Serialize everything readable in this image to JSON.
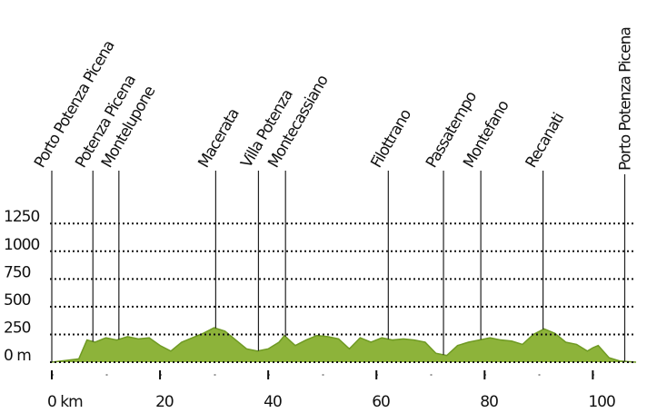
{
  "chart_data": {
    "type": "area",
    "color": "#8db33a",
    "line_color": "#6f9a23",
    "x": [
      0,
      5,
      6.5,
      8,
      10,
      12,
      14,
      16,
      18,
      20,
      22,
      24,
      26,
      28,
      30,
      32,
      34,
      36,
      38,
      40,
      42,
      43,
      45,
      47,
      49,
      51,
      53,
      55,
      57,
      59,
      61,
      63,
      65,
      67,
      69,
      71,
      73,
      75,
      77,
      79,
      81,
      83,
      85,
      87,
      89,
      91,
      93,
      95,
      97,
      99,
      100,
      101,
      103,
      105,
      108
    ],
    "values": [
      0,
      30,
      200,
      180,
      220,
      200,
      230,
      210,
      220,
      150,
      100,
      180,
      220,
      260,
      310,
      280,
      200,
      120,
      100,
      120,
      180,
      240,
      150,
      200,
      240,
      230,
      210,
      120,
      220,
      180,
      220,
      200,
      210,
      200,
      180,
      80,
      60,
      150,
      180,
      200,
      220,
      200,
      190,
      160,
      250,
      300,
      260,
      180,
      160,
      100,
      130,
      150,
      40,
      10,
      0
    ],
    "xlim": [
      0,
      108
    ],
    "ylim": [
      0,
      1350
    ],
    "xticks": [
      {
        "value": 0,
        "label": "0 km"
      },
      20,
      40,
      60,
      80,
      100
    ],
    "yticks": [
      {
        "value": 0,
        "label": "0 m"
      },
      250,
      500,
      750,
      1000,
      1250
    ],
    "grid": true,
    "waypoints": [
      {
        "name": "Porto Potenza Picena",
        "km": 0
      },
      {
        "name": "Potenza Picena",
        "km": 7.6
      },
      {
        "name": "Montelupone",
        "km": 12.4
      },
      {
        "name": "Macerata",
        "km": 30.3
      },
      {
        "name": "Villa Potenza",
        "km": 38.2
      },
      {
        "name": "Montecassiano",
        "km": 43.2
      },
      {
        "name": "Filottrano",
        "km": 62.2
      },
      {
        "name": "Passatempo",
        "km": 72.4
      },
      {
        "name": "Montefano",
        "km": 79.3
      },
      {
        "name": "Recanati",
        "km": 90.8
      },
      {
        "name": "Porto Potenza Picena",
        "km": 105.9
      }
    ]
  }
}
